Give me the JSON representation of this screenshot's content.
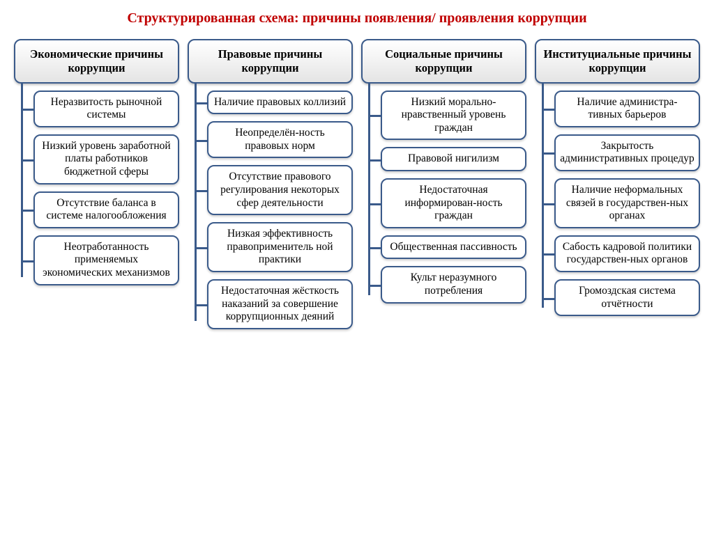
{
  "title": "Структурированная схема: причины появления/ проявления коррупции",
  "colors": {
    "title": "#c00000",
    "border": "#3a5a8a",
    "header_gradient_top": "#ffffff",
    "header_gradient_bottom": "#e4e4e4",
    "background": "#ffffff",
    "text": "#000000"
  },
  "typography": {
    "title_fontsize": 20,
    "header_fontsize": 16.5,
    "item_fontsize": 15.5,
    "font_family": "Times New Roman"
  },
  "layout": {
    "type": "tree",
    "columns": 4,
    "border_radius": 10,
    "border_width": 2,
    "connector_width": 3
  },
  "columns": [
    {
      "header": "Экономические причины коррупции",
      "items": [
        "Неразвитость рыночной системы",
        "Низкий уровень заработной платы работников бюджетной сферы",
        "Отсутствие баланса в системе налогообложения",
        "Неотработанность применяемых экономических механизмов"
      ]
    },
    {
      "header": "Правовые причины коррупции",
      "items": [
        "Наличие правовых коллизий",
        "Неопределён-ность правовых норм",
        "Отсутствие правового регулирования некоторых сфер деятельности",
        "Низкая эффективность правоприменитель ной практики",
        "Недостаточная жёсткость наказаний за совершение коррупционных деяний"
      ]
    },
    {
      "header": "Социальные причины коррупции",
      "items": [
        "Низкий морально-нравственный уровень граждан",
        "Правовой нигилизм",
        "Недостаточная информирован-ность граждан",
        "Общественная пассивность",
        "Культ неразумного потребления"
      ]
    },
    {
      "header": "Институциальные причины коррупции",
      "items": [
        "Наличие администра-тивных барьеров",
        "Закрытость административных процедур",
        "Наличие неформальных связей в государствен-ных органах",
        "Сабость кадровой политики государствен-ных органов",
        "Громоздская система отчётности"
      ]
    }
  ]
}
